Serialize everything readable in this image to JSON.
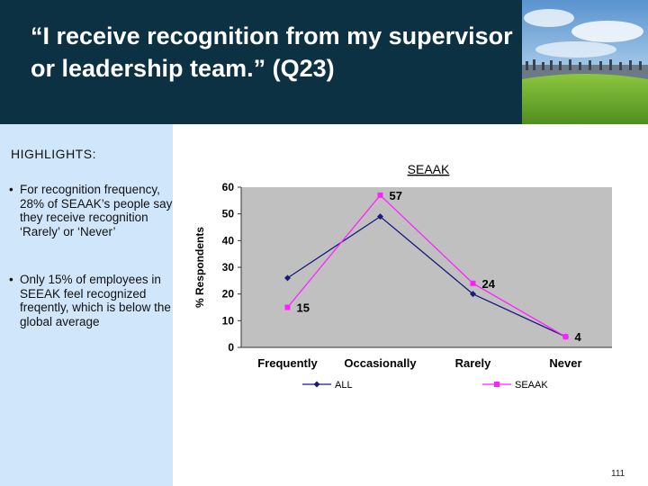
{
  "slide": {
    "title": "“I receive recognition from my supervisor or leadership team.” (Q23)",
    "highlights_heading": "HIGHLIGHTS:",
    "bullets": [
      "For recognition frequency, 28% of SEAAK’s people say they receive recognition ‘Rarely’ or ‘Never’",
      "Only 15% of employees in SEEAK feel recognized freqently, which is below the global average"
    ],
    "bullet_marker": "•",
    "page_number": "111"
  },
  "colors": {
    "header_bg": "#0b3142",
    "sidebar_bg": "#cfe6fb",
    "plot_bg": "#c0c0c0",
    "series_all": "#1a1a80",
    "series_seaak": "#ff22ff"
  },
  "chart_data": {
    "type": "line",
    "title": "SEAAK",
    "xlabel": "",
    "ylabel": "% Respondents",
    "categories": [
      "Frequently",
      "Occasionally",
      "Rarely",
      "Never"
    ],
    "ylim": [
      0,
      60
    ],
    "yticks": [
      0,
      10,
      20,
      30,
      40,
      50,
      60
    ],
    "grid": false,
    "legend_position": "bottom",
    "series": [
      {
        "name": "ALL",
        "values": [
          26,
          49,
          20,
          4
        ],
        "marker": "diamond",
        "color": "#1a1a80",
        "show_labels": false
      },
      {
        "name": "SEAAK",
        "values": [
          15,
          57,
          24,
          4
        ],
        "marker": "square",
        "color": "#ff22ff",
        "show_labels": true
      }
    ]
  }
}
